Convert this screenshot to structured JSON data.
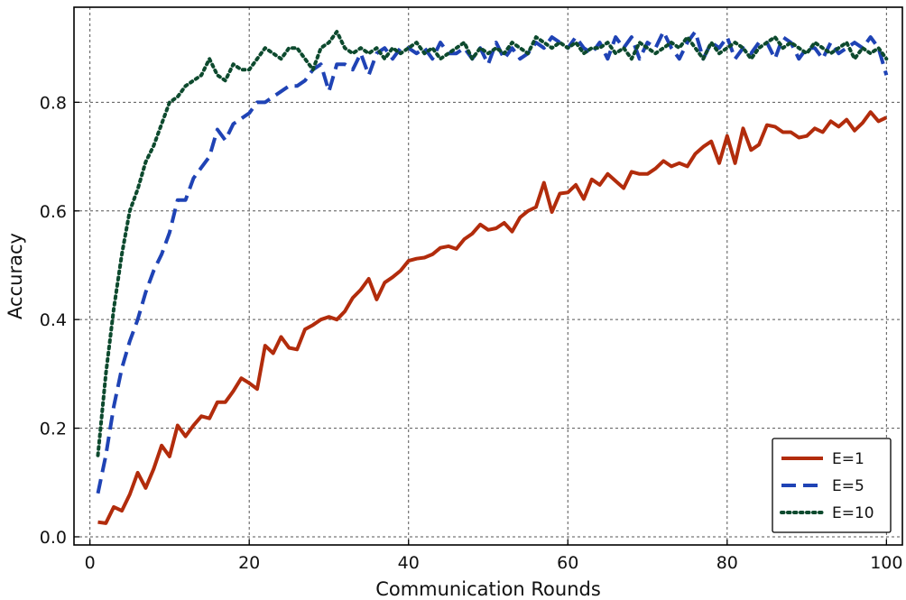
{
  "chart_data": {
    "type": "line",
    "title": "",
    "xlabel": "Communication Rounds",
    "ylabel": "Accuracy",
    "xlim": [
      -2,
      102
    ],
    "ylim": [
      -0.015,
      0.975
    ],
    "x_ticks": [
      0,
      20,
      40,
      60,
      80,
      100
    ],
    "y_ticks": [
      0.0,
      0.2,
      0.4,
      0.6,
      0.8
    ],
    "x_tick_labels": [
      "0",
      "20",
      "40",
      "60",
      "80",
      "100"
    ],
    "y_tick_labels": [
      "0.0",
      "0.2",
      "0.4",
      "0.6",
      "0.8"
    ],
    "grid": true,
    "legend_position": "bottom-right",
    "x": [
      1,
      2,
      3,
      4,
      5,
      6,
      7,
      8,
      9,
      10,
      11,
      12,
      13,
      14,
      15,
      16,
      17,
      18,
      19,
      20,
      21,
      22,
      23,
      24,
      25,
      26,
      27,
      28,
      29,
      30,
      31,
      32,
      33,
      34,
      35,
      36,
      37,
      38,
      39,
      40,
      41,
      42,
      43,
      44,
      45,
      46,
      47,
      48,
      49,
      50,
      51,
      52,
      53,
      54,
      55,
      56,
      57,
      58,
      59,
      60,
      61,
      62,
      63,
      64,
      65,
      66,
      67,
      68,
      69,
      70,
      71,
      72,
      73,
      74,
      75,
      76,
      77,
      78,
      79,
      80,
      81,
      82,
      83,
      84,
      85,
      86,
      87,
      88,
      89,
      90,
      91,
      92,
      93,
      94,
      95,
      96,
      97,
      98,
      99,
      100
    ],
    "series": [
      {
        "name": "E=1",
        "color": "#b22c0c",
        "style": "solid",
        "values": [
          0.027,
          0.025,
          0.055,
          0.048,
          0.078,
          0.118,
          0.09,
          0.125,
          0.168,
          0.148,
          0.205,
          0.185,
          0.205,
          0.222,
          0.218,
          0.248,
          0.248,
          0.268,
          0.292,
          0.283,
          0.272,
          0.352,
          0.338,
          0.368,
          0.348,
          0.345,
          0.382,
          0.39,
          0.4,
          0.405,
          0.4,
          0.415,
          0.44,
          0.455,
          0.475,
          0.437,
          0.468,
          0.478,
          0.49,
          0.508,
          0.512,
          0.514,
          0.52,
          0.532,
          0.535,
          0.53,
          0.548,
          0.558,
          0.575,
          0.565,
          0.568,
          0.578,
          0.562,
          0.588,
          0.6,
          0.607,
          0.652,
          0.598,
          0.632,
          0.634,
          0.648,
          0.622,
          0.658,
          0.648,
          0.668,
          0.655,
          0.642,
          0.672,
          0.668,
          0.668,
          0.678,
          0.692,
          0.682,
          0.688,
          0.682,
          0.705,
          0.718,
          0.728,
          0.688,
          0.738,
          0.688,
          0.752,
          0.712,
          0.722,
          0.758,
          0.755,
          0.745,
          0.745,
          0.735,
          0.738,
          0.752,
          0.745,
          0.765,
          0.755,
          0.768,
          0.748,
          0.762,
          0.782,
          0.765,
          0.772
        ]
      },
      {
        "name": "E=5",
        "color": "#1f43b5",
        "style": "dashed",
        "values": [
          0.08,
          0.15,
          0.24,
          0.31,
          0.36,
          0.4,
          0.45,
          0.49,
          0.52,
          0.56,
          0.62,
          0.62,
          0.66,
          0.68,
          0.7,
          0.75,
          0.73,
          0.76,
          0.77,
          0.78,
          0.8,
          0.8,
          0.81,
          0.82,
          0.83,
          0.83,
          0.84,
          0.86,
          0.87,
          0.82,
          0.87,
          0.87,
          0.86,
          0.89,
          0.85,
          0.89,
          0.9,
          0.88,
          0.9,
          0.9,
          0.89,
          0.9,
          0.88,
          0.91,
          0.89,
          0.89,
          0.9,
          0.88,
          0.9,
          0.87,
          0.91,
          0.88,
          0.9,
          0.88,
          0.89,
          0.91,
          0.9,
          0.92,
          0.91,
          0.9,
          0.92,
          0.9,
          0.89,
          0.91,
          0.88,
          0.92,
          0.9,
          0.92,
          0.88,
          0.91,
          0.9,
          0.93,
          0.9,
          0.88,
          0.91,
          0.93,
          0.88,
          0.91,
          0.9,
          0.92,
          0.88,
          0.9,
          0.89,
          0.91,
          0.91,
          0.88,
          0.92,
          0.91,
          0.88,
          0.9,
          0.9,
          0.88,
          0.91,
          0.89,
          0.9,
          0.91,
          0.9,
          0.92,
          0.9,
          0.85
        ]
      },
      {
        "name": "E=10",
        "color": "#0d4a2e",
        "style": "dotted",
        "values": [
          0.15,
          0.3,
          0.42,
          0.52,
          0.6,
          0.64,
          0.69,
          0.72,
          0.76,
          0.8,
          0.81,
          0.83,
          0.84,
          0.85,
          0.88,
          0.85,
          0.84,
          0.87,
          0.86,
          0.86,
          0.88,
          0.9,
          0.89,
          0.88,
          0.9,
          0.9,
          0.88,
          0.86,
          0.9,
          0.91,
          0.93,
          0.9,
          0.89,
          0.9,
          0.89,
          0.9,
          0.88,
          0.9,
          0.89,
          0.9,
          0.91,
          0.89,
          0.9,
          0.88,
          0.89,
          0.9,
          0.91,
          0.88,
          0.9,
          0.89,
          0.9,
          0.89,
          0.91,
          0.9,
          0.89,
          0.92,
          0.91,
          0.9,
          0.91,
          0.9,
          0.91,
          0.89,
          0.9,
          0.9,
          0.91,
          0.89,
          0.9,
          0.88,
          0.91,
          0.9,
          0.89,
          0.9,
          0.91,
          0.9,
          0.92,
          0.9,
          0.88,
          0.91,
          0.89,
          0.9,
          0.91,
          0.9,
          0.88,
          0.9,
          0.91,
          0.92,
          0.9,
          0.91,
          0.9,
          0.89,
          0.91,
          0.9,
          0.89,
          0.9,
          0.91,
          0.88,
          0.9,
          0.89,
          0.9,
          0.88
        ]
      }
    ]
  }
}
